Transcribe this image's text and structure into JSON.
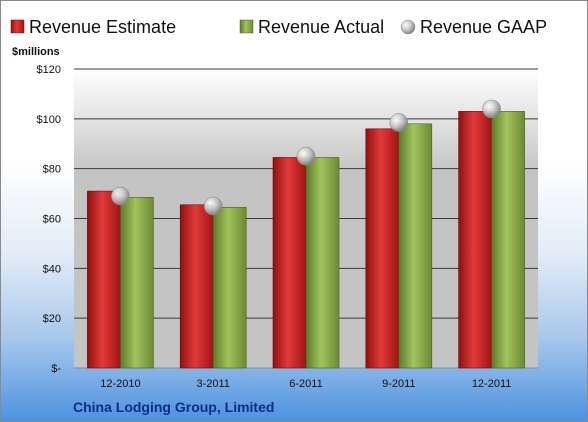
{
  "colors": {
    "estimate": "#c81e1e",
    "actual": "#88a845",
    "gaap": "#b8b8b8",
    "company_text": "#0b2f86"
  },
  "chart_data": {
    "type": "bar",
    "company": "China Lodging Group, Limited",
    "unit_label": "$millions",
    "categories": [
      "12-2010",
      "3-2011",
      "6-2011",
      "9-2011",
      "12-2011"
    ],
    "series": [
      {
        "name": "Revenue Estimate",
        "type": "bar",
        "values": [
          71,
          65.5,
          84.5,
          96,
          103
        ]
      },
      {
        "name": "Revenue Actual",
        "type": "bar",
        "values": [
          68.5,
          64.5,
          84.5,
          98,
          103
        ]
      },
      {
        "name": "Revenue GAAP",
        "type": "marker",
        "values": [
          69,
          65,
          85,
          98.5,
          104
        ]
      }
    ],
    "ylim": [
      0,
      120
    ],
    "y_ticks": [
      0,
      20,
      40,
      60,
      80,
      100,
      120
    ],
    "y_tick_labels": [
      "$-",
      "$20",
      "$40",
      "$60",
      "$80",
      "$100",
      "$120"
    ],
    "legend_position": "top",
    "grid": true
  }
}
